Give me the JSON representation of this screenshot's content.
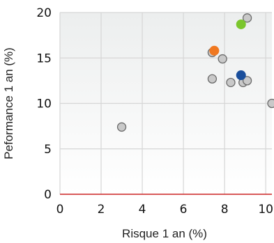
{
  "chart_data": {
    "type": "scatter",
    "title": "",
    "xlabel": "Risque 1 an (%)",
    "ylabel": "Peformance 1 an (%)",
    "xlim": [
      0,
      10.3
    ],
    "ylim": [
      0,
      20
    ],
    "xticks": [
      0,
      2,
      4,
      6,
      8,
      10
    ],
    "yticks": [
      0,
      5,
      10,
      15,
      20
    ],
    "grid": true,
    "background": "#f3f5f5",
    "zero_line_color": "#cc2222",
    "series": [
      {
        "color": "#c9c9c9",
        "points": [
          {
            "x": 3.0,
            "y": 7.4
          },
          {
            "x": 7.4,
            "y": 12.7
          },
          {
            "x": 7.4,
            "y": 15.6
          },
          {
            "x": 7.9,
            "y": 14.9
          },
          {
            "x": 8.3,
            "y": 12.3
          },
          {
            "x": 8.9,
            "y": 12.3
          },
          {
            "x": 9.1,
            "y": 12.5
          },
          {
            "x": 9.1,
            "y": 19.4
          },
          {
            "x": 10.3,
            "y": 10.0
          }
        ]
      },
      {
        "color": "#f07820",
        "points": [
          {
            "x": 7.5,
            "y": 15.8
          }
        ]
      },
      {
        "color": "#1a4f9c",
        "points": [
          {
            "x": 8.8,
            "y": 13.1
          }
        ]
      },
      {
        "color": "#7bc62d",
        "points": [
          {
            "x": 8.8,
            "y": 18.7
          }
        ]
      }
    ]
  }
}
